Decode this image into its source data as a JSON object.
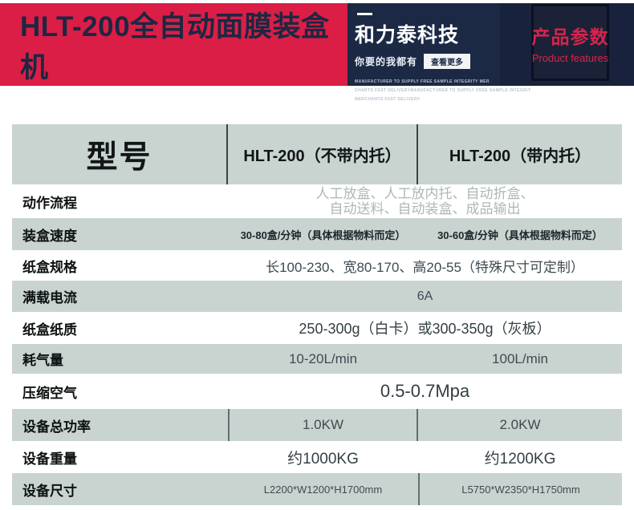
{
  "banner": {
    "title": "HLT-200全自动面膜装盒机",
    "brand": {
      "name": "和力泰科技",
      "tagline": "你要的我都有",
      "more_button": "查看更多",
      "small_lines": [
        "MANUFACTURER TO SUPPLY FREE SAMPLE INTEGRITY MER",
        "CHARTS FAST DELIVERYMANUFACTURER TO SUPPLY FREE SAMPLE INTEGRIT",
        "MERCHANTS FAST DELIVERY"
      ]
    },
    "badge": {
      "title": "产品参数",
      "subtitle": "Product features"
    },
    "colors": {
      "banner_red": "#da1e46",
      "panel_navy": "#1b2944",
      "badge_text_red": "#d6244c",
      "table_row_sage": "#c9d4d1"
    }
  },
  "table": {
    "header": {
      "model": "型号",
      "col1": "HLT-200（不带内托）",
      "col2": "HLT-200（带内托）"
    },
    "rows": [
      {
        "label": "动作流程",
        "line1": "人工放盒、人工放内托、自动折盒、",
        "line2": "自动送料、自动装盒、成品输出"
      },
      {
        "label": "装盒速度",
        "col1": "30-80盒/分钟（具体根据物料而定）",
        "col2": "30-60盒/分钟（具体根据物料而定）"
      },
      {
        "label": "纸盒规格",
        "span": "长100-230、宽80-170、高20-55（特殊尺寸可定制）"
      },
      {
        "label": "满载电流",
        "span": "6A"
      },
      {
        "label": "纸盒纸质",
        "span": "250-300g（白卡）或300-350g（灰板）"
      },
      {
        "label": "耗气量",
        "col1": "10-20L/min",
        "col2": "100L/min"
      },
      {
        "label": "压缩空气",
        "span": "0.5-0.7Mpa"
      },
      {
        "label": "设备总功率",
        "col1": "1.0KW",
        "col2": "2.0KW"
      },
      {
        "label": "设备重量",
        "col1": "约1000KG",
        "col2": "约1200KG"
      },
      {
        "label": "设备尺寸",
        "col1": "L2200*W1200*H1700mm",
        "col2": "L5750*W2350*H1750mm"
      }
    ]
  }
}
